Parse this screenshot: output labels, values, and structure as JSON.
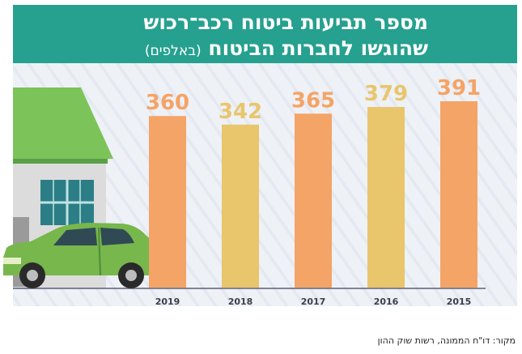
{
  "title": {
    "line1": "מספר תביעות ביטוח רכב־רכוש",
    "line2": "שהוגשו לחברות הביטוח",
    "unit": "(באלפים)"
  },
  "source": "מקור: דו\"ח הממונה, רשות שוק ההון",
  "colors": {
    "title_band": "#26a08f",
    "bar_orange": "#f4a466",
    "bar_yellow": "#e9c56c",
    "plot_background": "#eef1f6",
    "roof": "#7cc35a",
    "car": "#77b74c"
  },
  "chart_data": {
    "type": "bar",
    "categories": [
      "2019",
      "2018",
      "2017",
      "2016",
      "2015"
    ],
    "values": [
      360,
      342,
      365,
      379,
      391
    ],
    "bar_colors": [
      "#f4a466",
      "#e9c56c",
      "#f4a466",
      "#e9c56c",
      "#f4a466"
    ],
    "ylim": [
      0,
      391
    ],
    "grid": false,
    "data_labels": true
  }
}
